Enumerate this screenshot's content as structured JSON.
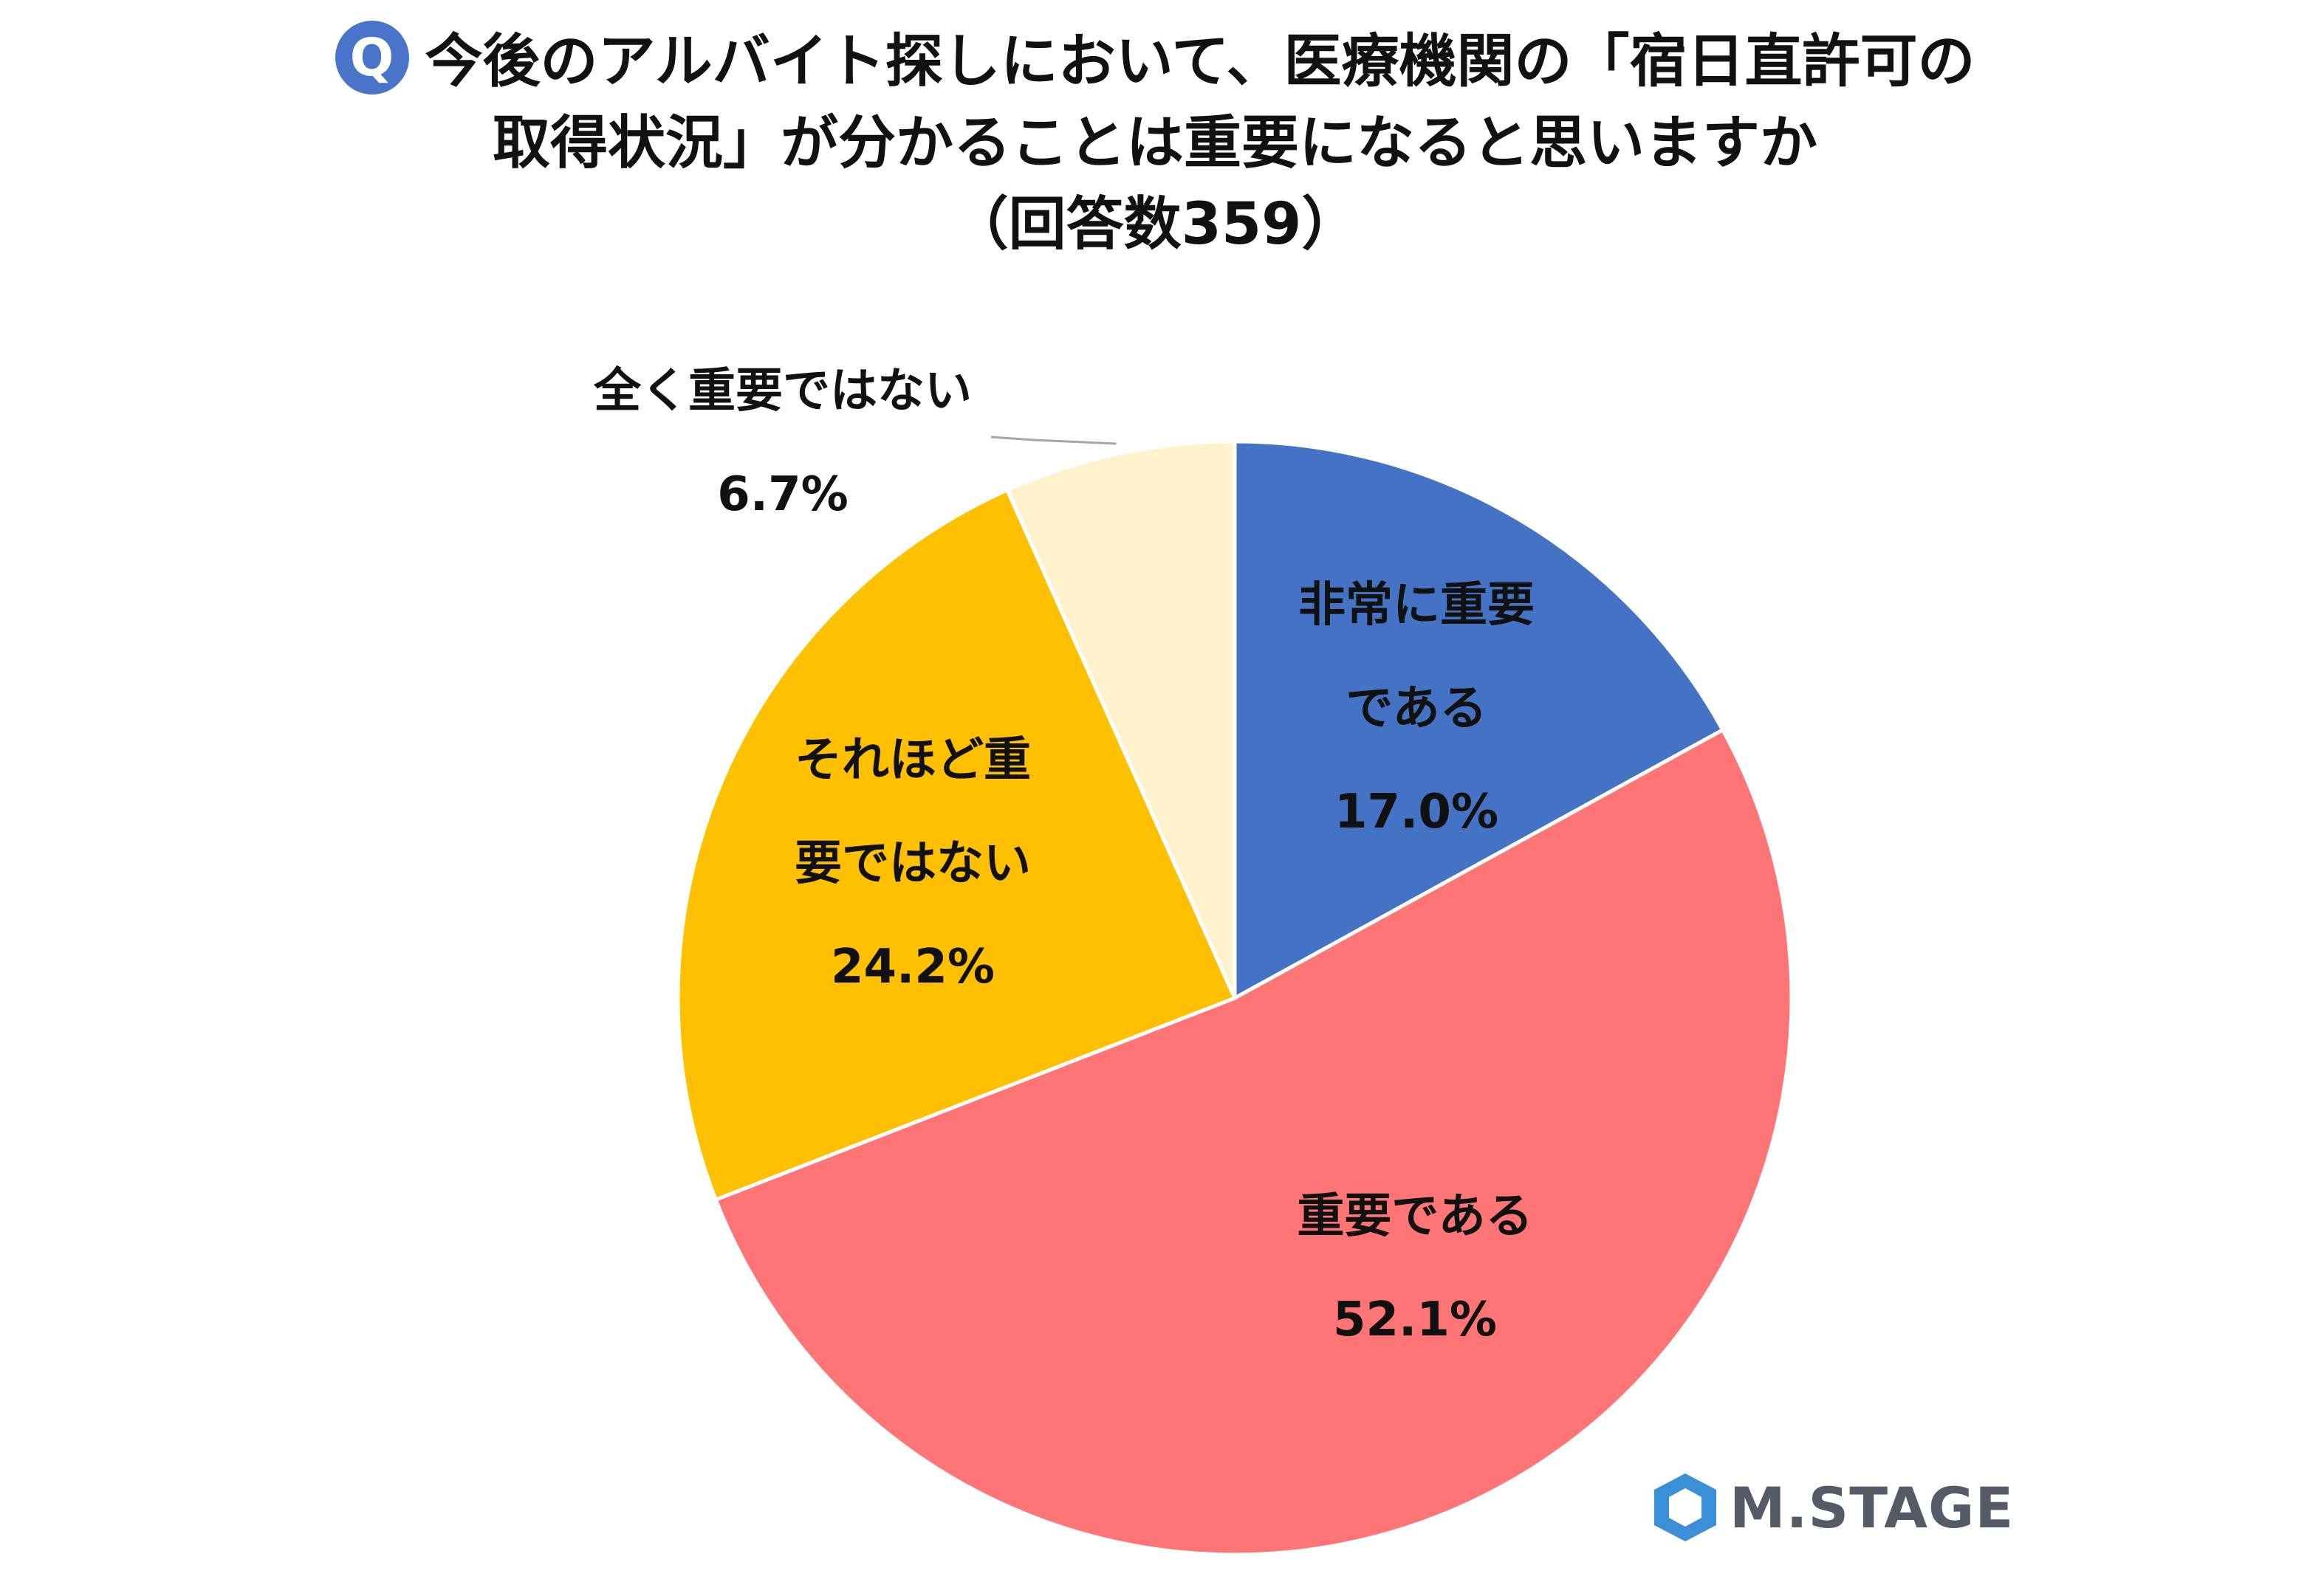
{
  "title": {
    "badge": "Q",
    "line1": "今後のアルバイト探しにおいて、医療機関の「宿日直許可の",
    "line2": "取得状況」が分かることは重要になると思いますか",
    "line3": "（回答数359）"
  },
  "chart_data": {
    "type": "pie",
    "start": "12 o'clock",
    "direction": "clockwise",
    "slices": [
      {
        "label_lines": [
          "非常に重要",
          "である"
        ],
        "value": 17.0,
        "value_text": "17.0%",
        "color": "#4472c4",
        "label_position": "inside"
      },
      {
        "label_lines": [
          "重要である"
        ],
        "value": 52.1,
        "value_text": "52.1%",
        "color": "#ff7575",
        "label_position": "inside"
      },
      {
        "label_lines": [
          "それほど重",
          "要ではない"
        ],
        "value": 24.2,
        "value_text": "24.2%",
        "color": "#ffc000",
        "label_position": "inside"
      },
      {
        "label_lines": [
          "全く重要ではない"
        ],
        "value": 6.7,
        "value_text": "6.7%",
        "color": "#fff2cc",
        "label_position": "outside with leader line"
      }
    ]
  },
  "logo": {
    "text": "M.STAGE",
    "mark_color": "#3a8fd6"
  }
}
